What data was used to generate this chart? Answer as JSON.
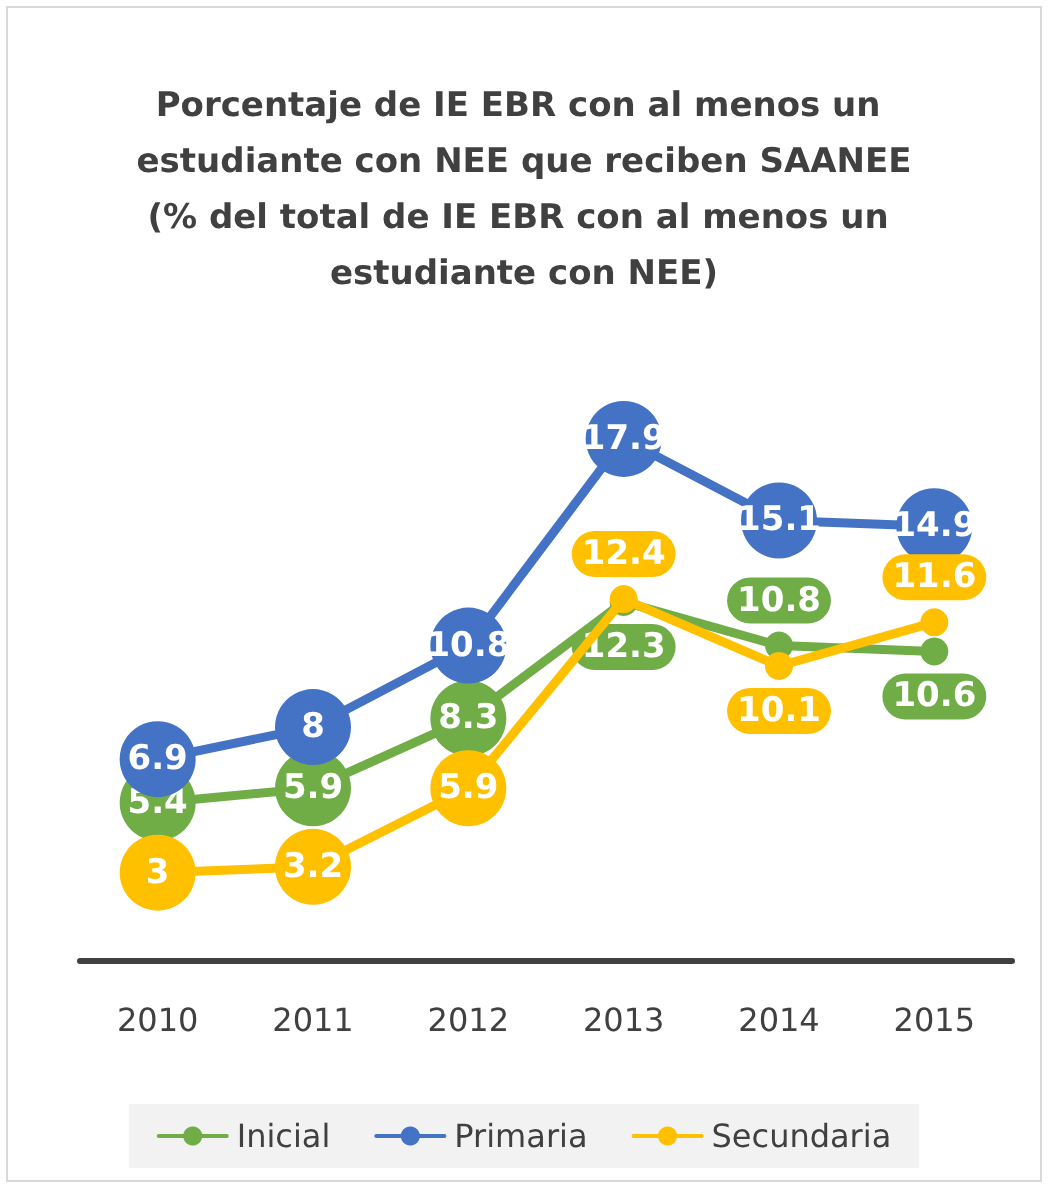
{
  "chart_data": {
    "type": "line",
    "title": "Porcentaje de IE EBR con al menos un estudiante con NEE que reciben SAANEE\n(% del total de IE EBR con al menos un estudiante con NEE)",
    "categories": [
      "2010",
      "2011",
      "2012",
      "2013",
      "2014",
      "2015"
    ],
    "series": [
      {
        "name": "Inicial",
        "color": "#70ad47",
        "values": [
          5.4,
          5.9,
          8.3,
          12.3,
          10.8,
          10.6
        ]
      },
      {
        "name": "Primaria",
        "color": "#4472c4",
        "values": [
          6.9,
          8,
          10.8,
          17.9,
          15.1,
          14.9
        ]
      },
      {
        "name": "Secundaria",
        "color": "#ffc000",
        "values": [
          3,
          3.2,
          5.9,
          12.4,
          10.1,
          11.6
        ]
      }
    ],
    "tick_labels": "x",
    "data_labels": true,
    "grid": false,
    "legend": "bottom",
    "marker": "circle",
    "line_style": "solid"
  }
}
